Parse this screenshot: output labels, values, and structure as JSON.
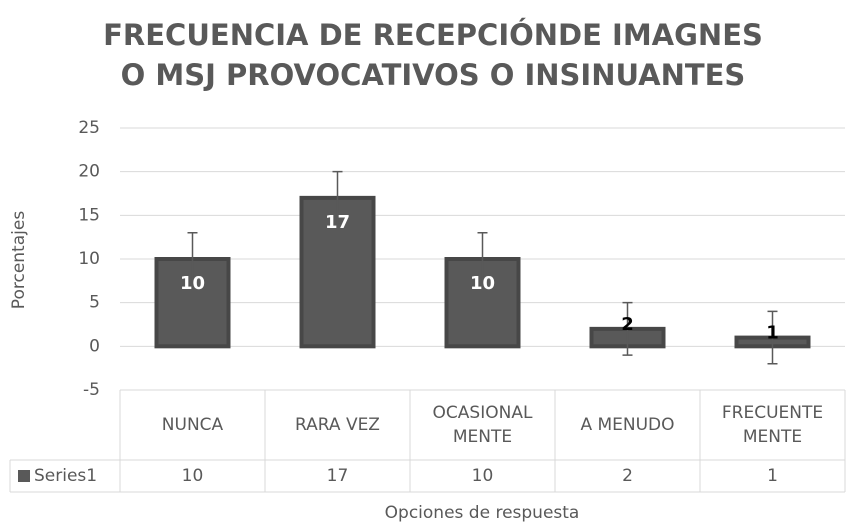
{
  "chart_data": {
    "type": "bar",
    "title": "FRECUENCIA DE RECEPCIÓNDE IMAGNES\nO MSJ PROVOCATIVOS O INSINUANTES",
    "y_label": "Porcentajes",
    "x_label": "Opciones de respuesta",
    "categories": [
      "NUNCA",
      "RARA VEZ",
      "OCASIONAL\nMENTE",
      "A MENUDO",
      "FRECUENTE\nMENTE"
    ],
    "series": [
      {
        "name": "Series1",
        "color": "#595959",
        "values": [
          10,
          17,
          10,
          2,
          1
        ],
        "errors": [
          3,
          3,
          3,
          3,
          3
        ]
      }
    ],
    "ylim": [
      -5,
      25
    ],
    "yticks": [
      -5,
      0,
      5,
      10,
      15,
      20,
      25
    ],
    "grid": true,
    "data_table": true
  }
}
